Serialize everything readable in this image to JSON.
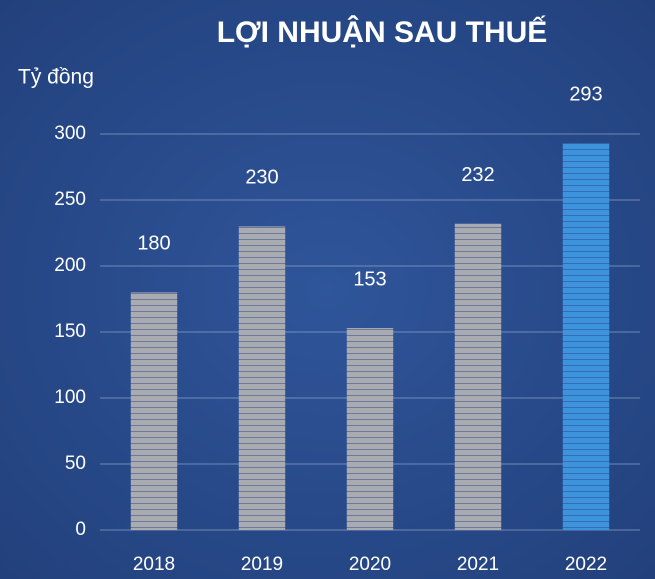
{
  "chart_data": {
    "type": "bar",
    "title": "LỢI NHUẬN SAU THUẾ",
    "y_label": "Tỷ đồng",
    "categories": [
      "2018",
      "2019",
      "2020",
      "2021",
      "2022"
    ],
    "values": [
      180,
      230,
      153,
      232,
      293
    ],
    "colors": [
      "#a9abb0",
      "#a9abb0",
      "#a9abb0",
      "#a9abb0",
      "#3d93dc"
    ],
    "ylim": [
      0,
      300
    ],
    "yticks": [
      0,
      50,
      100,
      150,
      200,
      250,
      300
    ],
    "grid": true
  }
}
